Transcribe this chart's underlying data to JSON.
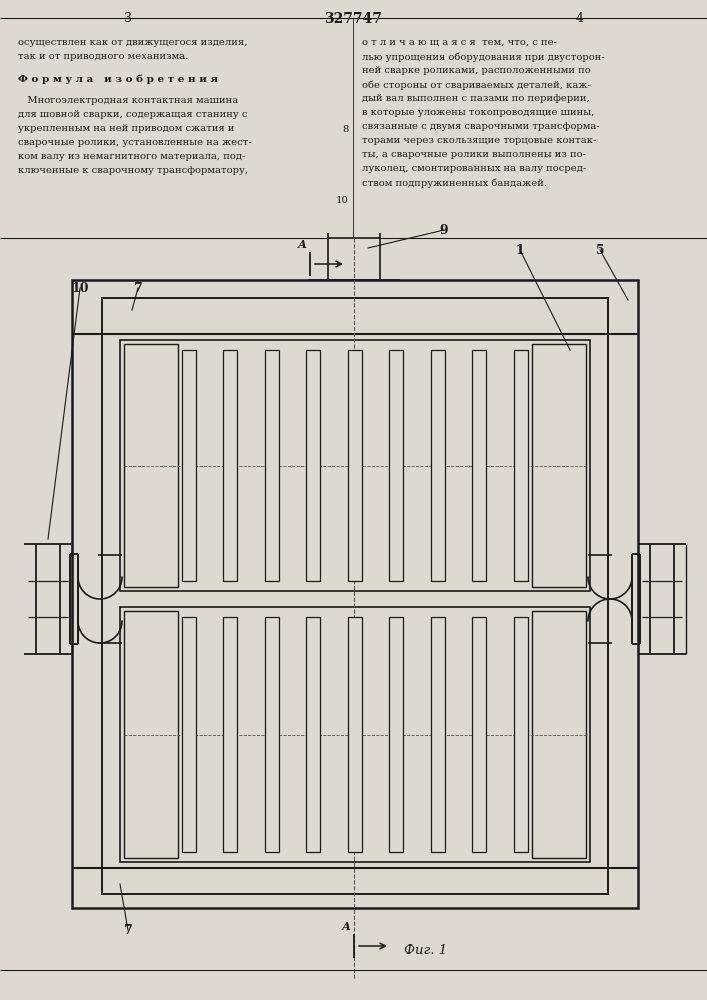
{
  "page_color": "#ddd9d0",
  "line_color": "#1a1a1a",
  "fig_label": "Фиг. 1",
  "patent_number": "327747",
  "page_left": "3",
  "page_right": "4",
  "text_col1": [
    "осуществлен как от движущегося изделия,",
    "так и от приводного механизма."
  ],
  "formula_title": "Ф о р м у л а   и з о б р е т е н и я",
  "text_col1_body": [
    "   Многоэлектродная контактная машина",
    "для шовной сварки, содержащая станину с",
    "укрепленным на ней приводом сжатия и",
    "сварочные ролики, установленные на жест-",
    "ком валу из немагнитного материала, под-",
    "ключенные к сварочному трансформатору,"
  ],
  "text_col2": [
    "о т л и ч а ю щ а я с я  тем, что, с пе-",
    "лью упрощения оборудования при двусторон-",
    "ней сварке роликами, расположенными по",
    "обе стороны от свариваемых деталей, каж-",
    "дый вал выполнен с пазами по периферии,",
    "в которые уложены токопроводящие шины,",
    "связанные с двумя сварочными трансформа-",
    "торами через скользящие торцовые контак-",
    "ты, а сварочные ролики выполнены из по-",
    "луколец, смонтированных на валу посред-",
    "ством подпружиненных бандажей."
  ],
  "line_num_8": "8",
  "line_num_10": "10"
}
